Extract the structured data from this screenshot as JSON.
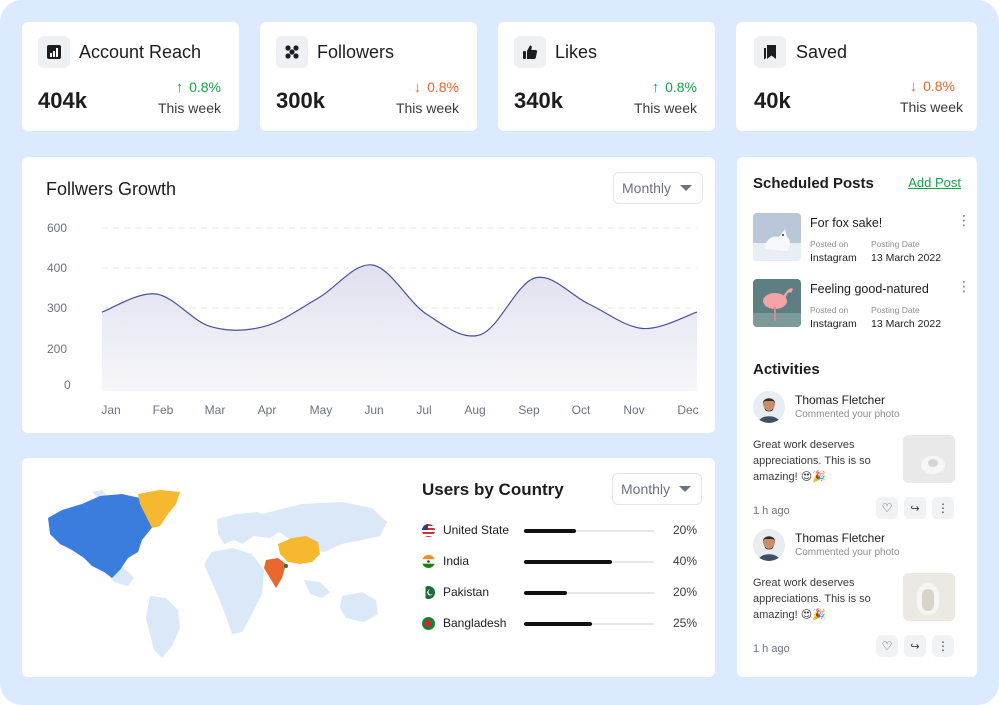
{
  "stats": [
    {
      "title": "Account Reach",
      "value": "404k",
      "change": "0.8%",
      "direction": "up",
      "period": "This week",
      "icon": "chart-icon"
    },
    {
      "title": "Followers",
      "value": "300k",
      "change": "0.8%",
      "direction": "down",
      "period": "This week",
      "icon": "users-icon"
    },
    {
      "title": "Likes",
      "value": "340k",
      "change": "0.8%",
      "direction": "up",
      "period": "This week",
      "icon": "thumbs-up-icon"
    },
    {
      "title": "Saved",
      "value": "40k",
      "change": "0.8%",
      "direction": "down",
      "period": "This week",
      "icon": "bookmark-icon"
    }
  ],
  "growth": {
    "title": "Follwers Growth",
    "filter": "Monthly"
  },
  "chart_data": {
    "type": "area",
    "x": [
      "Jan",
      "Feb",
      "Mar",
      "Apr",
      "May",
      "Jun",
      "Jul",
      "Aug",
      "Sep",
      "Oct",
      "Nov",
      "Dec"
    ],
    "values": [
      290,
      335,
      255,
      255,
      325,
      415,
      285,
      235,
      375,
      310,
      250,
      290
    ],
    "yticks": [
      0,
      200,
      300,
      400,
      600
    ],
    "grid": true,
    "colors": {
      "line": "#4a4f9e",
      "fill_top": "#dfe0ee",
      "fill_bottom": "#f7f7fb"
    }
  },
  "scheduled": {
    "title": "Scheduled Posts",
    "add_label": "Add Post",
    "posts": [
      {
        "title": "For fox sake!",
        "posted_on_label": "Posted on",
        "posted_on": "Instagram",
        "date_label": "Posting Date",
        "date": "13 March 2022"
      },
      {
        "title": "Feeling good-natured",
        "posted_on_label": "Posted on",
        "posted_on": "Instagram",
        "date_label": "Posting Date",
        "date": "13 March 2022"
      }
    ]
  },
  "activities": {
    "title": "Activities",
    "items": [
      {
        "name": "Thomas Fletcher",
        "action": "Commented your photo",
        "message": "Great work deserves appreciations. This is so amazing! 😍🎉",
        "time": "1 h ago"
      },
      {
        "name": "Thomas Fletcher",
        "action": "Commented your photo",
        "message": "Great work deserves appreciations. This is so amazing! 😍🎉",
        "time": "1 h ago"
      }
    ]
  },
  "countries": {
    "title": "Users by Country",
    "filter": "Monthly",
    "items": [
      {
        "name": "United State",
        "percent": "20%",
        "share": 0.4
      },
      {
        "name": "India",
        "percent": "40%",
        "share": 0.68
      },
      {
        "name": "Pakistan",
        "percent": "20%",
        "share": 0.33
      },
      {
        "name": "Bangladesh",
        "percent": "25%",
        "share": 0.52
      }
    ]
  },
  "colors": {
    "accent_green": "#16a34a",
    "accent_orange": "#e8672f",
    "map_blue": "#3b7ddd",
    "map_yellow": "#f5b82e",
    "map_base": "#dbe8f8"
  }
}
